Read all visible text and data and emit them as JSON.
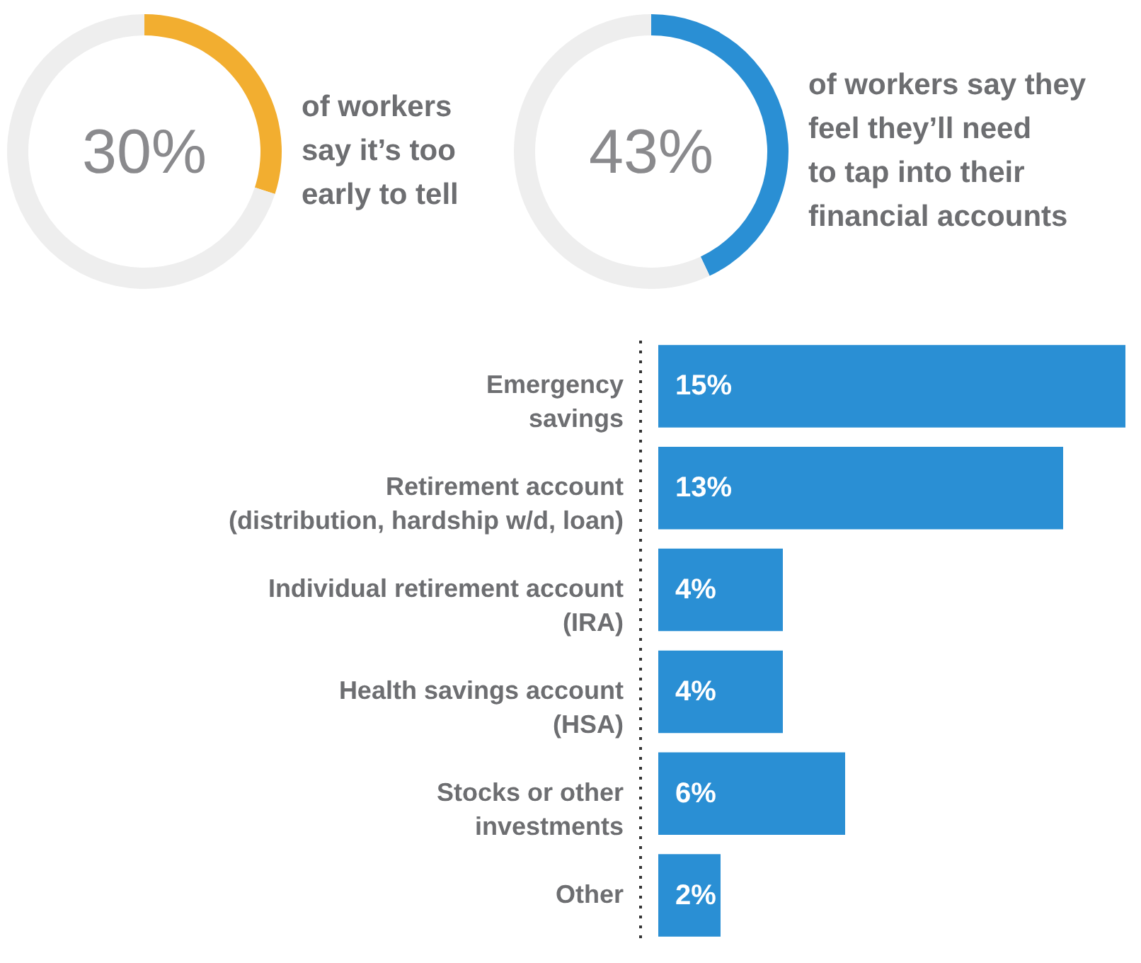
{
  "chart_data": [
    {
      "type": "donut",
      "categories": [
        null,
        null
      ],
      "values": [
        30,
        70
      ],
      "colors": [
        "#f2ae30",
        "#eeeeee"
      ],
      "annotations": [
        "30%",
        "of workers\nsay it’s too\nearly to tell"
      ]
    },
    {
      "type": "donut",
      "categories": [
        null,
        null
      ],
      "values": [
        43,
        57
      ],
      "colors": [
        "#2a8fd4",
        "#eeeeee"
      ],
      "annotations": [
        "43%",
        "of workers say they\nfeel they’ll need\nto tap into their\nfinancial accounts"
      ]
    },
    {
      "type": "bar",
      "orientation": "horizontal",
      "categories": [
        "Emergency\nsavings",
        "Retirement account\n(distribution, hardship w/d, loan)",
        "Individual retirement account\n(IRA)",
        "Health savings account\n(HSA)",
        "Stocks or other\ninvestments",
        "Other"
      ],
      "values": [
        15,
        13,
        4,
        4,
        6,
        2
      ],
      "color": "#2a8fd4",
      "value_labels": [
        "15%",
        "13%",
        "4%",
        "4%",
        "6%",
        "2%"
      ]
    }
  ]
}
